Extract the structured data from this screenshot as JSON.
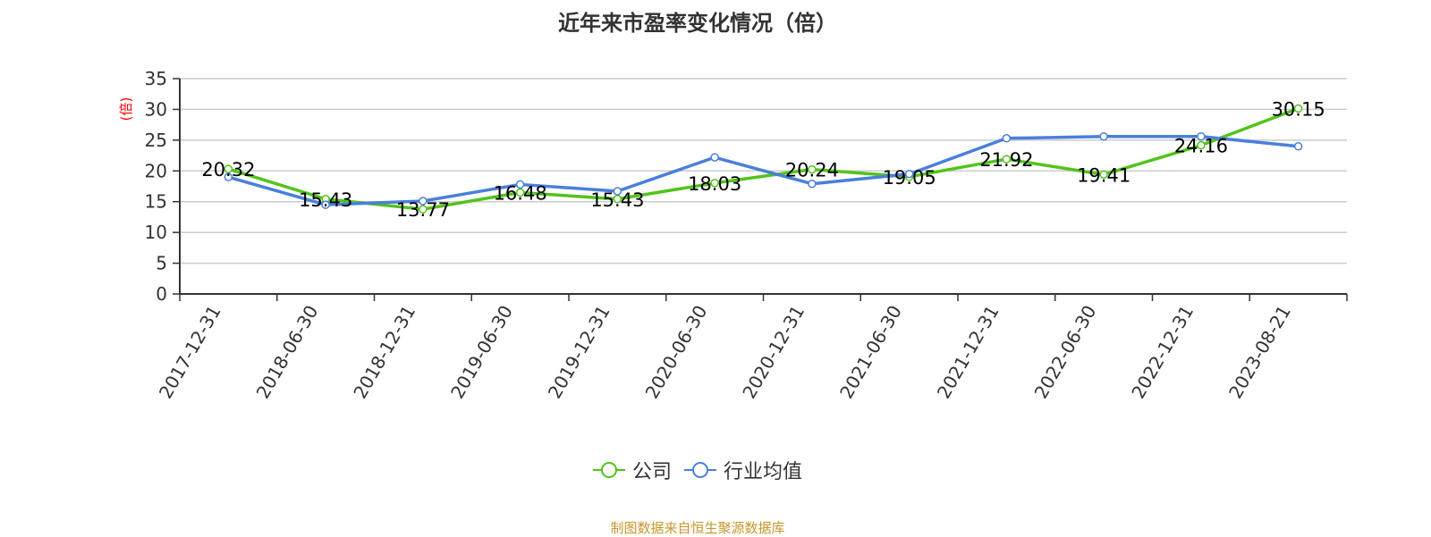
{
  "title": "近年来市盈率变化情况（倍）",
  "y_unit": "(倍)",
  "source": "制图数据来自恒生聚源数据库",
  "legend": [
    {
      "label": "公司",
      "color": "#52c41a"
    },
    {
      "label": "行业均值",
      "color": "#4a7fdc"
    }
  ],
  "chart_data": {
    "type": "line",
    "title": "近年来市盈率变化情况（倍）",
    "xlabel": "",
    "ylabel": "(倍)",
    "ylim": [
      0,
      35
    ],
    "yticks": [
      0,
      5,
      10,
      15,
      20,
      25,
      30,
      35
    ],
    "grid": true,
    "legend_position": "bottom",
    "categories": [
      "2017-12-31",
      "2018-06-30",
      "2018-12-31",
      "2019-06-30",
      "2019-12-31",
      "2020-06-30",
      "2020-12-31",
      "2021-06-30",
      "2021-12-31",
      "2022-06-30",
      "2022-12-31",
      "2023-08-21"
    ],
    "series": [
      {
        "name": "公司",
        "color": "#52c41a",
        "values": [
          20.32,
          15.43,
          13.77,
          16.48,
          15.43,
          18.03,
          20.24,
          19.05,
          21.92,
          19.41,
          24.16,
          30.15
        ],
        "labels_shown": true
      },
      {
        "name": "行业均值",
        "color": "#4a7fdc",
        "values": [
          19.0,
          14.5,
          15.1,
          17.8,
          16.7,
          22.2,
          17.9,
          19.5,
          25.3,
          25.6,
          25.6,
          24.0
        ],
        "labels_shown": false
      }
    ]
  }
}
